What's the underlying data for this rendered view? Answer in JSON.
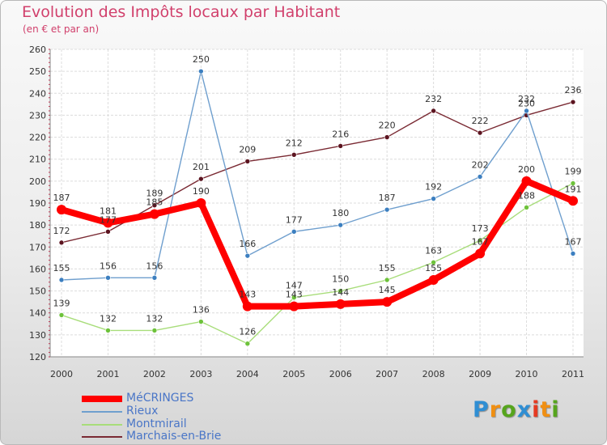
{
  "chart_data": {
    "type": "line",
    "title": "Evolution des Impôts locaux par Habitant",
    "subtitle": "(en € et par an)",
    "xlabel": "",
    "ylabel": "",
    "x": [
      "2000",
      "2001",
      "2002",
      "2003",
      "2004",
      "2005",
      "2006",
      "2007",
      "2008",
      "2009",
      "2010",
      "2011"
    ],
    "yticks": [
      "120",
      "130",
      "140",
      "150",
      "160",
      "170",
      "180",
      "190",
      "200",
      "210",
      "220",
      "230",
      "240",
      "250",
      "260"
    ],
    "ylim": [
      120,
      260
    ],
    "grid": true,
    "legend_position": "bottom-left",
    "series": [
      {
        "name": "MéCRINGES",
        "color": "#ff0000",
        "values": [
          187,
          181,
          185,
          190,
          143,
          143,
          144,
          145,
          155,
          167,
          200,
          191
        ],
        "labels": [
          "187",
          "181",
          "185",
          "190",
          "143",
          "143",
          "144",
          "145",
          "155",
          "167",
          "200",
          "191"
        ]
      },
      {
        "name": "Rieux",
        "color": "#6f9fce",
        "values": [
          155,
          156,
          156,
          250,
          166,
          177,
          180,
          187,
          192,
          202,
          232,
          167
        ],
        "labels": [
          "155",
          "156",
          "156",
          "250",
          "166",
          "177",
          "180",
          "187",
          "192",
          "202",
          "232",
          "167"
        ]
      },
      {
        "name": "Montmirail",
        "color": "#a8dd7a",
        "values": [
          139,
          132,
          132,
          136,
          126,
          147,
          150,
          155,
          163,
          173,
          188,
          199
        ],
        "labels": [
          "139",
          "132",
          "132",
          "136",
          "126",
          "147",
          "150",
          "155",
          "163",
          "173",
          "188",
          "199"
        ]
      },
      {
        "name": "Marchais-en-Brie",
        "color": "#7a2a33",
        "values": [
          172,
          177,
          189,
          201,
          209,
          212,
          216,
          220,
          232,
          222,
          230,
          236
        ],
        "labels": [
          "172",
          "177",
          "189",
          "201",
          "209",
          "212",
          "216",
          "220",
          "232",
          "222",
          "230",
          "236"
        ]
      }
    ]
  },
  "logo": {
    "letters": [
      "P",
      "r",
      "o",
      "x",
      "i",
      "t",
      "i"
    ],
    "colors": [
      "#2f8ed3",
      "#f08f12",
      "#56a51d",
      "#2f8ed3",
      "#e53a22",
      "#f08f12",
      "#56a51d"
    ]
  }
}
